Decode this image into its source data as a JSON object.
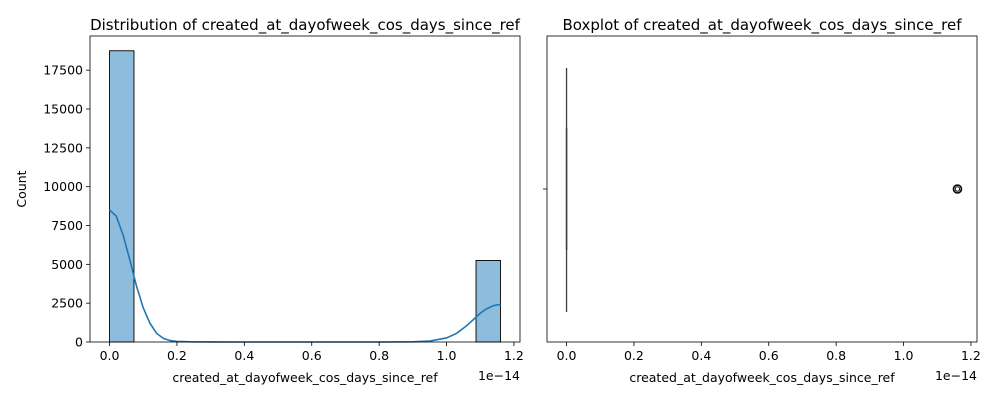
{
  "chart_data": [
    {
      "type": "bar",
      "title": "Distribution of created_at_dayofweek_cos_days_since_ref",
      "xlabel": "created_at_dayofweek_cos_days_since_ref",
      "ylabel": "Count",
      "x_offset_label": "1e−14",
      "x_scale_factor": 1e-14,
      "xlim": [
        -0.058,
        1.218
      ],
      "ylim": [
        0,
        19700
      ],
      "x_ticks": [
        0.0,
        0.2,
        0.4,
        0.6,
        0.8,
        1.0,
        1.2
      ],
      "x_tick_labels": [
        "0.0",
        "0.2",
        "0.4",
        "0.6",
        "0.8",
        "1.0",
        "1.2"
      ],
      "y_ticks": [
        0,
        2500,
        5000,
        7500,
        10000,
        12500,
        15000,
        17500
      ],
      "y_tick_labels": [
        "0",
        "2500",
        "5000",
        "7500",
        "10000",
        "12500",
        "15000",
        "17500"
      ],
      "bin_width": 0.0725,
      "bars": [
        {
          "x_start": 0.0,
          "x_end": 0.0725,
          "count": 18750
        },
        {
          "x_start": 1.0875,
          "x_end": 1.16,
          "count": 5250
        }
      ],
      "bar_color": "#8ebcdc",
      "kde": {
        "color": "#1f77b4",
        "x": [
          0.0,
          0.02,
          0.04,
          0.06,
          0.08,
          0.1,
          0.12,
          0.14,
          0.16,
          0.18,
          0.2,
          0.25,
          0.3,
          0.4,
          0.5,
          0.6,
          0.7,
          0.8,
          0.9,
          0.95,
          1.0,
          1.03,
          1.06,
          1.08,
          1.1,
          1.12,
          1.14,
          1.16
        ],
        "y": [
          8500,
          8100,
          6900,
          5300,
          3600,
          2200,
          1200,
          550,
          230,
          90,
          35,
          8,
          2,
          0,
          0,
          0,
          0,
          0,
          10,
          60,
          260,
          560,
          1050,
          1450,
          1850,
          2150,
          2350,
          2420
        ]
      }
    },
    {
      "type": "boxplot",
      "title": "Boxplot of created_at_dayofweek_cos_days_since_ref",
      "xlabel": "created_at_dayofweek_cos_days_since_ref",
      "x_offset_label": "1e−14",
      "x_scale_factor": 1e-14,
      "xlim": [
        -0.058,
        1.218
      ],
      "x_ticks": [
        0.0,
        0.2,
        0.4,
        0.6,
        0.8,
        1.0,
        1.2
      ],
      "x_tick_labels": [
        "0.0",
        "0.2",
        "0.4",
        "0.6",
        "0.8",
        "1.0",
        "1.2"
      ],
      "box": {
        "q1": 0.0,
        "median": 0.0,
        "q3": 0.0,
        "whisker_low": 0.0,
        "whisker_high": 0.0
      },
      "outliers": [
        1.16
      ],
      "outlier_color": "#000000"
    }
  ]
}
